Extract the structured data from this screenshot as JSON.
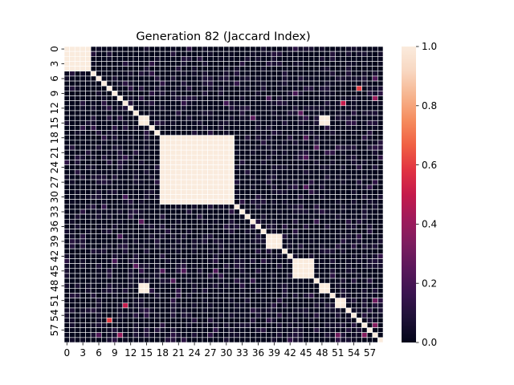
{
  "chart_data": {
    "type": "heatmap",
    "title": "Generation 82 (Jaccard Index)",
    "xlabel": "",
    "ylabel": "",
    "n": 60,
    "tick_labels": [
      "0",
      "3",
      "6",
      "9",
      "12",
      "15",
      "18",
      "21",
      "24",
      "27",
      "30",
      "33",
      "36",
      "39",
      "42",
      "45",
      "48",
      "51",
      "54",
      "57"
    ],
    "tick_step": 3,
    "colorbar": {
      "range": [
        0.0,
        1.0
      ],
      "ticks": [
        "0.0",
        "0.2",
        "0.4",
        "0.6",
        "0.8",
        "1.0"
      ],
      "colormap": "rocket",
      "stops": [
        "#03051a",
        "#1e1137",
        "#3b1450",
        "#5a185b",
        "#7d1d5f",
        "#9f1a5b",
        "#c51a4b",
        "#e13342",
        "#f06043",
        "#f58c5e",
        "#f6b48e",
        "#f8d7c1",
        "#faebdd"
      ]
    },
    "blocks": [
      {
        "start": 0,
        "end": 4,
        "value": 1.0
      },
      {
        "start": 14,
        "end": 15,
        "value": 1.0
      },
      {
        "start": 18,
        "end": 31,
        "value": 1.0
      },
      {
        "start": 38,
        "end": 40,
        "value": 1.0
      },
      {
        "start": 43,
        "end": 46,
        "value": 1.0
      },
      {
        "start": 48,
        "end": 49,
        "value": 1.0
      },
      {
        "start": 51,
        "end": 52,
        "value": 1.0
      }
    ],
    "cross_blocks": [
      {
        "rows": [
          14,
          15
        ],
        "cols": [
          48,
          49
        ],
        "value": 1.0
      }
    ],
    "off_diagonal": [
      {
        "row": 10,
        "col": 58,
        "value": 0.4
      },
      {
        "row": 8,
        "col": 55,
        "value": 0.6
      },
      {
        "row": 52,
        "col": 11,
        "value": 0.5
      },
      {
        "row": 56,
        "col": 58,
        "value": 0.35
      },
      {
        "row": 51,
        "col": 58,
        "value": 0.3
      },
      {
        "row": 14,
        "col": 35,
        "value": 0.25
      },
      {
        "row": 22,
        "col": 45,
        "value": 0.22
      },
      {
        "row": 28,
        "col": 45,
        "value": 0.22
      },
      {
        "row": 44,
        "col": 13,
        "value": 0.25
      },
      {
        "row": 45,
        "col": 18,
        "value": 0.22
      },
      {
        "row": 47,
        "col": 20,
        "value": 0.22
      },
      {
        "row": 43,
        "col": 9,
        "value": 0.2
      },
      {
        "row": 38,
        "col": 10,
        "value": 0.2
      },
      {
        "row": 30,
        "col": 11,
        "value": 0.18
      },
      {
        "row": 58,
        "col": 6,
        "value": 0.22
      }
    ]
  }
}
